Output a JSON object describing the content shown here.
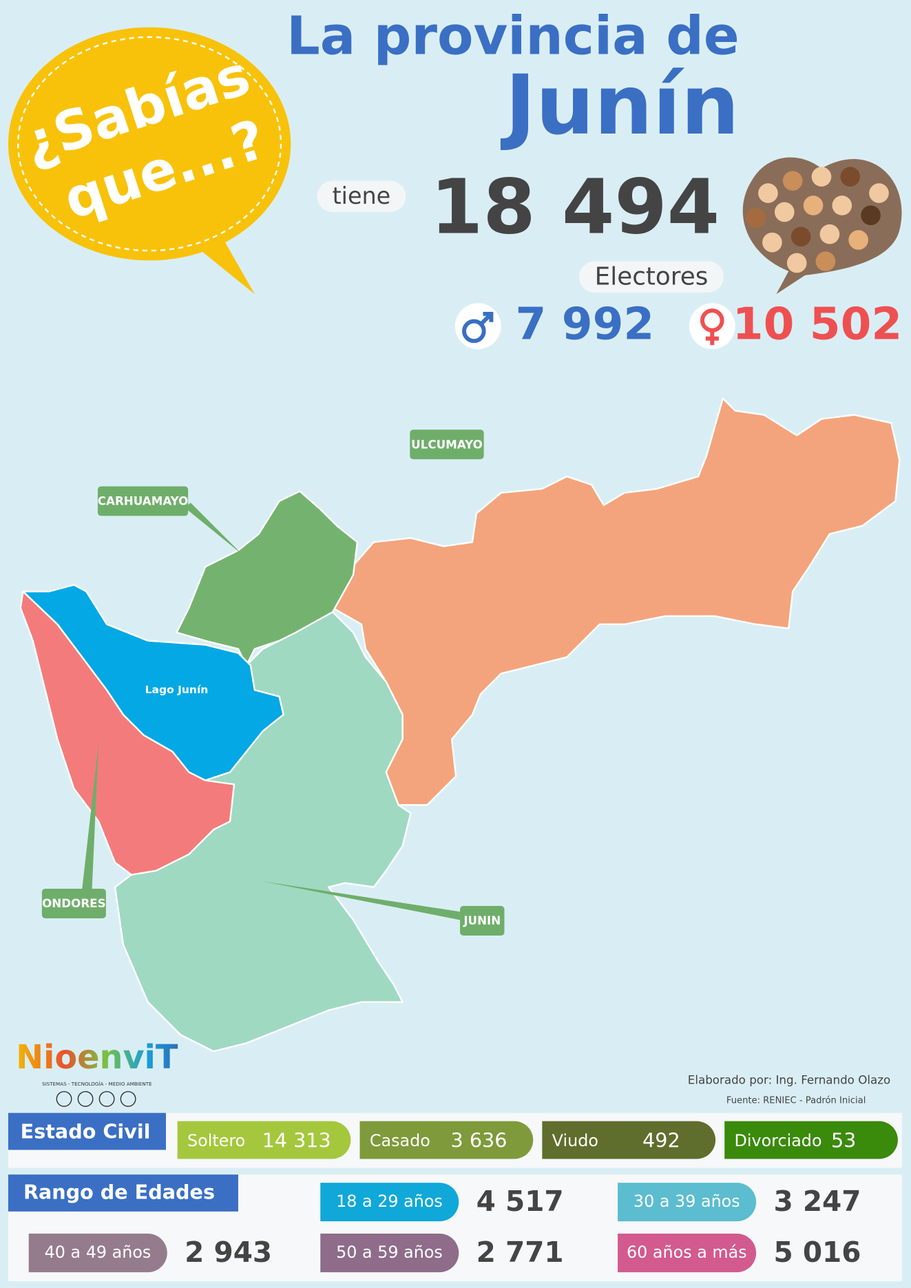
{
  "bubble": {
    "line1": "¿Sabías",
    "line2": "que...?"
  },
  "header": {
    "title_line1": "La provincia de",
    "title_line2": "Junín"
  },
  "total": {
    "prefix": "tiene",
    "value": "18 494",
    "label": "Electores"
  },
  "gender": {
    "male": "7 992",
    "female": "10 502"
  },
  "map": {
    "labels": [
      "ULCUMAYO",
      "CARHUAMAYO",
      "Lago Junín",
      "ONDORES",
      "JUNIN"
    ]
  },
  "logo": {
    "name": "NioenviT",
    "tagline": "SISTEMAS - TECNOLOGÍA - MEDIO AMBIENTE"
  },
  "credits": {
    "author": "Elaborado por: Ing. Fernando Olazo",
    "source": "Fuente: RENIEC - Padrón Inicial"
  },
  "civil_status": {
    "title": "Estado Civil",
    "items": [
      {
        "label": "Soltero",
        "value": "14 313"
      },
      {
        "label": "Casado",
        "value": "3 636"
      },
      {
        "label": "Viudo",
        "value": "492"
      },
      {
        "label": "Divorciado",
        "value": "53"
      }
    ]
  },
  "age_ranges": {
    "title": "Rango de Edades",
    "items": [
      {
        "label": "18 a 29 años",
        "value": "4 517"
      },
      {
        "label": "30 a 39 años",
        "value": "3 247"
      },
      {
        "label": "40 a 49 años",
        "value": "2 943"
      },
      {
        "label": "50 a 59 años",
        "value": "2 771"
      },
      {
        "label": "60 años a más",
        "value": "5 016"
      }
    ]
  }
}
